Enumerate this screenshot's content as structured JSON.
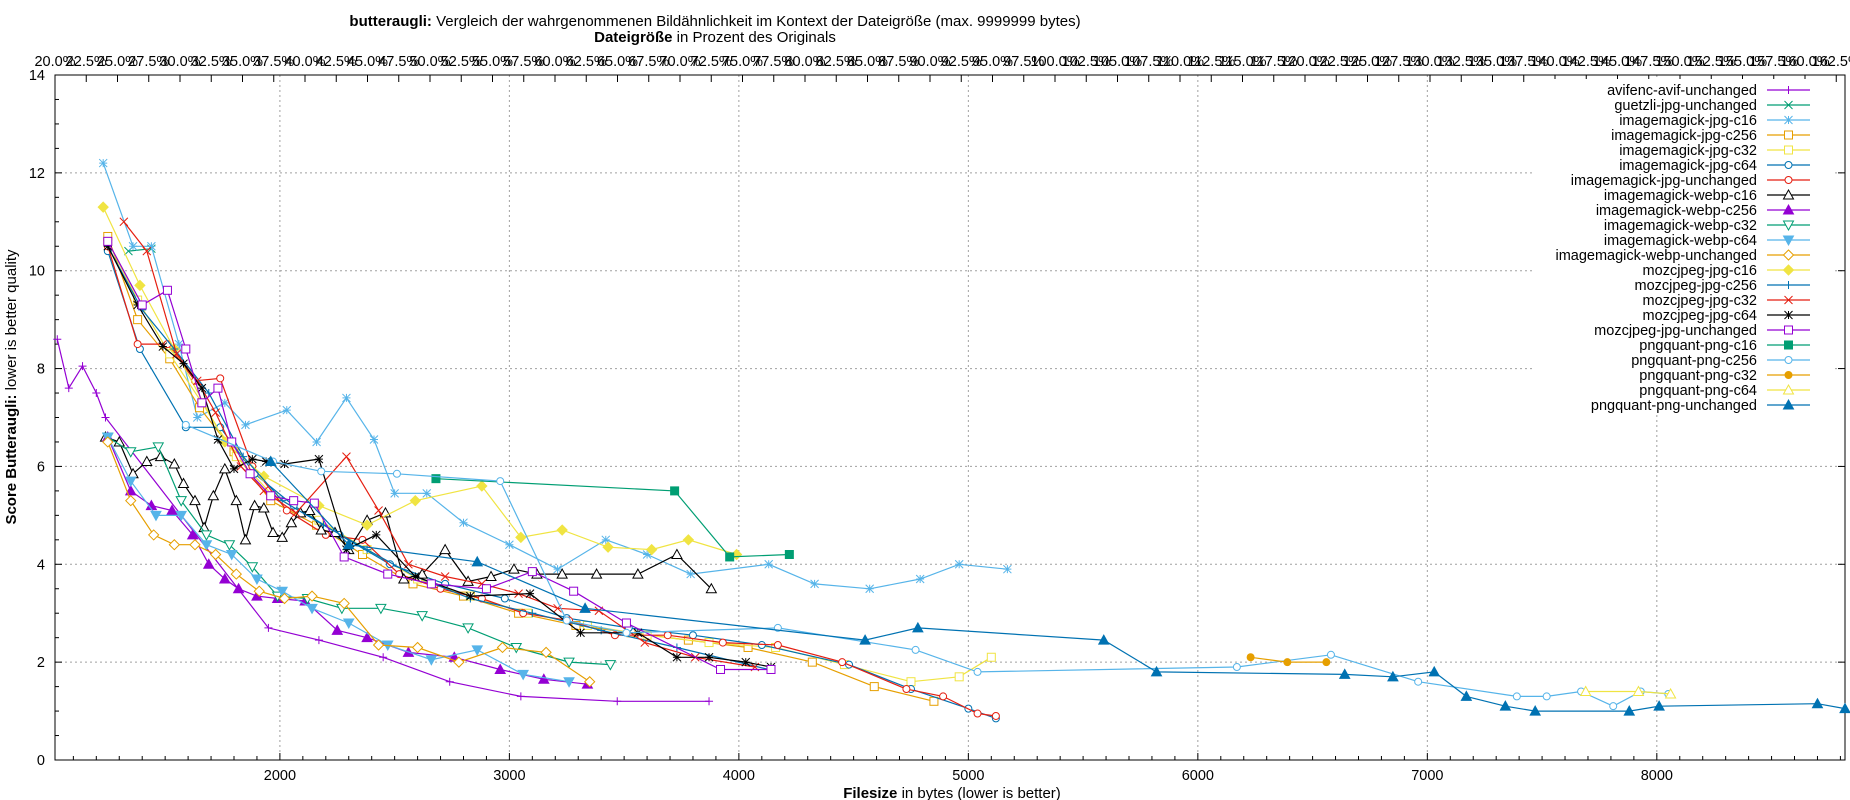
{
  "chart_data": {
    "type": "line",
    "title_bold": "butteraugli:",
    "title_rest": " Vergleich der wahrgenommenen Bildähnlichkeit im Kontext der Dateigröße (max. 9999999 bytes)",
    "subtitle_bold": "Dateigröße",
    "subtitle_rest": " in Prozent des Originals",
    "xlabel_bold": "Filesize",
    "xlabel_rest": " in bytes (lower is better)",
    "ylabel_bold": "Score Butteraugli:",
    "ylabel_rest": " lower is better quality",
    "xlim": [
      1020,
      8820
    ],
    "ylim": [
      0,
      14
    ],
    "grid": true,
    "legend_position": "top-right",
    "x_ticks": [
      "2000",
      "3000",
      "4000",
      "5000",
      "6000",
      "7000",
      "8000"
    ],
    "x_tick_values": [
      2000,
      3000,
      4000,
      5000,
      6000,
      7000,
      8000
    ],
    "y_ticks": [
      "0",
      "2",
      "4",
      "6",
      "8",
      "10",
      "12",
      "14"
    ],
    "y_tick_values": [
      0,
      2,
      4,
      6,
      8,
      10,
      12,
      14
    ],
    "top_ticks": [
      "20.0%",
      "22.5%",
      "25.0%",
      "27.5%",
      "30.0%",
      "32.5%",
      "35.0%",
      "37.5%",
      "40.0%",
      "42.5%",
      "45.0%",
      "47.5%",
      "50.0%",
      "52.5%",
      "55.0%",
      "57.5%",
      "60.0%",
      "62.5%",
      "65.0%",
      "67.5%",
      "70.0%",
      "72.5%",
      "75.0%",
      "77.5%",
      "80.0%",
      "82.5%",
      "85.0%",
      "87.5%",
      "90.0%",
      "92.5%",
      "95.0%",
      "97.5%",
      "100.0%",
      "102.5%",
      "105.0%",
      "107.5%",
      "110.0%",
      "112.5%",
      "115.0%",
      "117.5%",
      "120.0%",
      "122.5%",
      "125.0%",
      "127.5%",
      "130.0%",
      "132.5%",
      "135.0%",
      "137.5%",
      "140.0%",
      "142.5%",
      "145.0%",
      "147.5%",
      "150.0%",
      "152.5%",
      "155.0%",
      "157.5%",
      "160.0%",
      "162.5%"
    ],
    "top_tick_start": 20.0,
    "top_tick_step": 2.5,
    "top_scale_xmin_pct": 20.0,
    "top_scale_xmax_pct": 163.2,
    "series": [
      {
        "name": "avifenc-avif-unchanged",
        "color": "#9400d3",
        "marker": "plus",
        "x": [
          1030,
          1080,
          1140,
          1200,
          1240,
          1950,
          2170,
          2450,
          2740,
          3050,
          3470,
          3870
        ],
        "y": [
          8.6,
          7.6,
          8.05,
          7.5,
          7.0,
          2.7,
          2.45,
          2.1,
          1.6,
          1.3,
          1.2,
          1.2
        ]
      },
      {
        "name": "guetzli-jpg-unchanged",
        "color": "#009e73",
        "marker": "x",
        "x": [
          1340,
          1440
        ],
        "y": [
          10.4,
          10.45
        ]
      },
      {
        "name": "imagemagick-jpg-c16",
        "color": "#56b4e9",
        "marker": "star",
        "x": [
          1230,
          1360,
          1440,
          1560,
          1640,
          1760,
          1850,
          2030,
          2160,
          2290,
          2410,
          2500,
          2640,
          2800,
          3000,
          3210,
          3420,
          3600,
          3790,
          4130,
          4330,
          4570,
          4790,
          4960,
          5170
        ],
        "y": [
          12.2,
          10.5,
          10.5,
          8.5,
          7.0,
          7.3,
          6.85,
          7.15,
          6.5,
          7.4,
          6.55,
          5.45,
          5.45,
          4.85,
          4.4,
          3.9,
          4.5,
          4.2,
          3.8,
          4.0,
          3.6,
          3.5,
          3.7,
          4.0,
          3.9
        ]
      },
      {
        "name": "imagemagick-jpg-c256",
        "color": "#e69f00",
        "marker": "square",
        "x": [
          1250,
          1380,
          1520,
          1650,
          1800,
          1960,
          2160,
          2360,
          2580,
          2800,
          3040,
          3290,
          3530,
          3780,
          4040,
          4320,
          4590,
          4850
        ],
        "y": [
          10.7,
          9.0,
          8.2,
          7.2,
          6.3,
          5.3,
          4.8,
          4.2,
          3.6,
          3.35,
          3.0,
          2.75,
          2.6,
          2.45,
          2.3,
          2.0,
          1.5,
          1.2
        ]
      },
      {
        "name": "imagemagick-jpg-c32",
        "color": "#f0e442",
        "marker": "square",
        "x": [
          1250,
          1380,
          1520,
          1660,
          1810,
          1970,
          2170,
          2380,
          2600,
          2830,
          3080,
          3340,
          3600,
          3870,
          4160,
          4460,
          4750,
          4960,
          5100
        ],
        "y": [
          10.6,
          9.4,
          8.3,
          7.3,
          6.2,
          5.4,
          4.9,
          4.3,
          3.7,
          3.35,
          3.0,
          2.75,
          2.55,
          2.4,
          2.3,
          1.95,
          1.6,
          1.7,
          2.1
        ]
      },
      {
        "name": "imagemagick-jpg-c64",
        "color": "#0072b2",
        "marker": "circle",
        "x": [
          1250,
          1390,
          1590,
          1740,
          1890,
          2060,
          2260,
          2480,
          2720,
          2980,
          3250,
          3520,
          3800,
          4100,
          4480,
          4750,
          5000,
          5120
        ],
        "y": [
          10.4,
          8.4,
          6.8,
          6.8,
          5.85,
          5.2,
          4.6,
          4.0,
          3.6,
          3.3,
          2.9,
          2.7,
          2.55,
          2.35,
          1.95,
          1.45,
          1.05,
          0.85
        ]
      },
      {
        "name": "imagemagick-jpg-unchanged",
        "color": "#e51e10",
        "marker": "circle",
        "x": [
          1250,
          1380,
          1510,
          1630,
          1740,
          1880,
          2030,
          2200,
          2360,
          2520,
          2700,
          2880,
          3060,
          3260,
          3460,
          3690,
          3930,
          4170,
          4450,
          4730,
          4890,
          5040,
          5120
        ],
        "y": [
          10.5,
          8.5,
          8.5,
          7.75,
          7.8,
          6.0,
          5.1,
          4.6,
          4.5,
          3.8,
          3.5,
          3.3,
          3.0,
          2.85,
          2.55,
          2.55,
          2.4,
          2.35,
          2.0,
          1.45,
          1.3,
          0.95,
          0.9
        ]
      },
      {
        "name": "imagemagick-webp-c16",
        "color": "#000000",
        "marker": "triangle",
        "x": [
          1240,
          1300,
          1360,
          1420,
          1480,
          1540,
          1580,
          1630,
          1670,
          1710,
          1760,
          1810,
          1850,
          1890,
          1930,
          1970,
          2010,
          2050,
          2090,
          2130,
          2180,
          2240,
          2300,
          2380,
          2460,
          2540,
          2620,
          2720,
          2820,
          2920,
          3020,
          3120,
          3230,
          3380,
          3560,
          3730,
          3880
        ],
        "y": [
          6.6,
          6.5,
          5.85,
          6.1,
          6.2,
          6.05,
          5.65,
          5.3,
          4.75,
          5.4,
          5.95,
          5.3,
          4.5,
          5.2,
          5.15,
          4.65,
          4.55,
          4.85,
          5.05,
          5.1,
          4.7,
          4.65,
          4.3,
          4.9,
          5.05,
          3.7,
          3.8,
          4.3,
          3.65,
          3.75,
          3.9,
          3.8,
          3.8,
          3.8,
          3.8,
          4.2,
          3.5
        ]
      },
      {
        "name": "imagemagick-webp-c256",
        "color": "#9400d3",
        "marker": "triangle-filled",
        "x": [
          1250,
          1350,
          1440,
          1530,
          1620,
          1690,
          1760,
          1820,
          1900,
          1990,
          2110,
          2250,
          2380,
          2560,
          2760,
          2960,
          3150,
          3340
        ],
        "y": [
          6.6,
          5.5,
          5.2,
          5.1,
          4.6,
          4.0,
          3.7,
          3.5,
          3.35,
          3.3,
          3.25,
          2.65,
          2.5,
          2.2,
          2.1,
          1.85,
          1.65,
          1.55
        ]
      },
      {
        "name": "imagemagick-webp-c32",
        "color": "#009e73",
        "marker": "triangle-down",
        "x": [
          1250,
          1350,
          1470,
          1570,
          1680,
          1780,
          1880,
          1990,
          2120,
          2270,
          2440,
          2620,
          2820,
          3030,
          3260,
          3440
        ],
        "y": [
          6.6,
          6.3,
          6.4,
          5.3,
          4.6,
          4.4,
          3.95,
          3.35,
          3.3,
          3.1,
          3.1,
          2.95,
          2.7,
          2.3,
          2.0,
          1.95
        ]
      },
      {
        "name": "imagemagick-webp-c64",
        "color": "#56b4e9",
        "marker": "triangle-down-filled",
        "x": [
          1250,
          1350,
          1460,
          1570,
          1680,
          1790,
          1900,
          2010,
          2140,
          2300,
          2470,
          2660,
          2860,
          3060,
          3260
        ],
        "y": [
          6.6,
          5.7,
          5.0,
          5.0,
          4.4,
          4.2,
          3.7,
          3.45,
          3.1,
          2.8,
          2.35,
          2.05,
          2.25,
          1.75,
          1.6
        ]
      },
      {
        "name": "imagemagick-webp-unchanged",
        "color": "#e69f00",
        "marker": "diamond",
        "x": [
          1250,
          1350,
          1450,
          1540,
          1630,
          1720,
          1810,
          1910,
          2020,
          2140,
          2280,
          2430,
          2600,
          2780,
          2970,
          3160,
          3350
        ],
        "y": [
          6.5,
          5.3,
          4.6,
          4.4,
          4.4,
          4.2,
          3.8,
          3.45,
          3.3,
          3.35,
          3.2,
          2.35,
          2.3,
          2.0,
          2.3,
          2.2,
          1.6
        ]
      },
      {
        "name": "mozcjpeg-jpg-c16",
        "color": "#f0e442",
        "marker": "diamond-filled",
        "x": [
          1230,
          1390,
          1540,
          1760,
          1930,
          2170,
          2380,
          2590,
          2880,
          3050,
          3230,
          3430,
          3620,
          3780,
          3990
        ],
        "y": [
          11.3,
          9.7,
          8.4,
          6.5,
          5.8,
          5.2,
          4.8,
          5.3,
          5.6,
          4.55,
          4.7,
          4.35,
          4.3,
          4.5,
          4.2
        ]
      },
      {
        "name": "mozcjpeg-jpg-c256",
        "color": "#0072b2",
        "marker": "plus",
        "x": [
          1250,
          1400,
          1540,
          1690,
          1840,
          2010,
          2190,
          2380,
          2590,
          2830,
          3100,
          3400,
          3730,
          4130
        ],
        "y": [
          10.5,
          9.2,
          8.4,
          7.5,
          6.2,
          5.3,
          4.8,
          4.3,
          3.75,
          3.3,
          3.0,
          2.65,
          2.3,
          1.85
        ]
      },
      {
        "name": "mozcjpeg-jpg-c32",
        "color": "#e51e10",
        "marker": "x",
        "x": [
          1320,
          1420,
          1550,
          1640,
          1720,
          1830,
          1930,
          2070,
          2290,
          2430,
          2560,
          2720,
          2880,
          3040,
          3210,
          3390,
          3590,
          3810,
          4070
        ],
        "y": [
          11.0,
          10.4,
          8.3,
          7.75,
          7.1,
          6.0,
          5.5,
          5.05,
          6.2,
          5.1,
          4.0,
          3.75,
          3.6,
          3.4,
          3.1,
          3.05,
          2.4,
          2.1,
          1.9
        ]
      },
      {
        "name": "mozcjpeg-jpg-c64",
        "color": "#000000",
        "marker": "star",
        "x": [
          1250,
          1380,
          1490,
          1580,
          1660,
          1730,
          1800,
          1880,
          1940,
          2020,
          2170,
          2290,
          2420,
          2590,
          2830,
          3090,
          3310,
          3560,
          3730,
          3870,
          4030,
          4140
        ],
        "y": [
          10.5,
          9.3,
          8.45,
          8.1,
          7.6,
          6.55,
          5.95,
          6.15,
          6.1,
          6.05,
          6.15,
          4.3,
          4.6,
          3.75,
          3.35,
          3.4,
          2.6,
          2.6,
          2.1,
          2.1,
          2.0,
          1.9
        ]
      },
      {
        "name": "mozcjpeg-jpg-unchanged",
        "color": "#9400d3",
        "marker": "square",
        "x": [
          1250,
          1400,
          1510,
          1590,
          1660,
          1730,
          1790,
          1870,
          1960,
          2060,
          2150,
          2280,
          2470,
          2660,
          2900,
          3100,
          3280,
          3510,
          3920,
          4140
        ],
        "y": [
          10.6,
          9.3,
          9.6,
          8.4,
          7.3,
          7.6,
          6.5,
          5.85,
          5.4,
          5.3,
          5.25,
          4.15,
          3.8,
          3.6,
          3.5,
          3.85,
          3.45,
          2.8,
          1.85,
          1.85
        ]
      },
      {
        "name": "pngquant-png-c16",
        "color": "#009e73",
        "marker": "square-filled",
        "x": [
          2680,
          3720,
          3960,
          4220
        ],
        "y": [
          5.75,
          5.5,
          4.15,
          4.2
        ]
      },
      {
        "name": "pngquant-png-c256",
        "color": "#56b4e9",
        "marker": "circle",
        "x": [
          1590,
          1970,
          2180,
          2510,
          2960,
          3250,
          3510,
          4170,
          4770,
          5040,
          6170,
          6580,
          6960,
          7390,
          7520,
          7670,
          7810,
          7930,
          8050
        ],
        "y": [
          6.85,
          6.1,
          5.9,
          5.85,
          5.7,
          2.85,
          2.6,
          2.7,
          2.25,
          1.8,
          1.9,
          2.15,
          1.6,
          1.3,
          1.3,
          1.4,
          1.1,
          1.4,
          1.35
        ]
      },
      {
        "name": "pngquant-png-c32",
        "color": "#e69f00",
        "marker": "circle-filled",
        "x": [
          6230,
          6390,
          6560
        ],
        "y": [
          2.1,
          2.0,
          2.0
        ]
      },
      {
        "name": "pngquant-png-c64",
        "color": "#f0e442",
        "marker": "triangle",
        "x": [
          7690,
          7920,
          8060
        ],
        "y": [
          1.4,
          1.4,
          1.35
        ]
      },
      {
        "name": "pngquant-png-unchanged",
        "color": "#0072b2",
        "marker": "triangle-filled",
        "x": [
          1960,
          2300,
          2860,
          3330,
          4550,
          4780,
          5590,
          5820,
          6640,
          6850,
          7030,
          7170,
          7340,
          7470,
          7880,
          8010,
          8700,
          8820
        ],
        "y": [
          6.1,
          4.4,
          4.05,
          3.1,
          2.45,
          2.7,
          2.45,
          1.8,
          1.75,
          1.7,
          1.8,
          1.3,
          1.1,
          1.0,
          1.0,
          1.1,
          1.15,
          1.05
        ]
      }
    ]
  }
}
